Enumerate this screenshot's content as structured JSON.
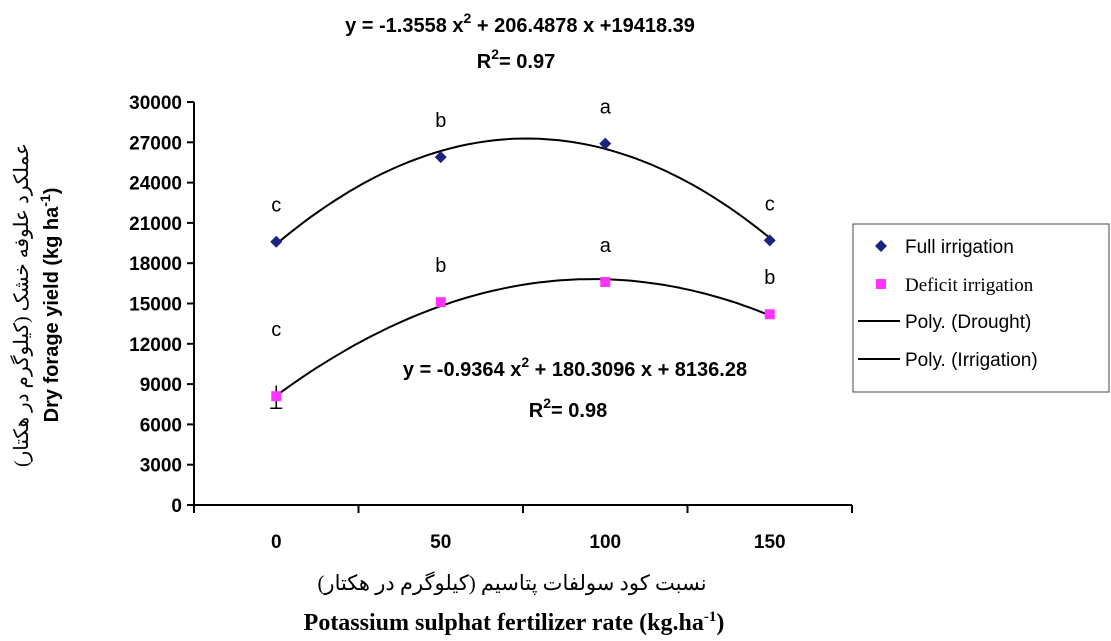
{
  "chart_data": {
    "type": "scatter",
    "x": [
      0,
      50,
      100,
      150
    ],
    "x_ticks": [
      0,
      50,
      100,
      150
    ],
    "xlim": [
      -25,
      175
    ],
    "ylim": [
      0,
      30000
    ],
    "y_ticks": [
      0,
      3000,
      6000,
      9000,
      12000,
      15000,
      18000,
      21000,
      24000,
      27000,
      30000
    ],
    "ylabel_fa": "عملکرد علوفه خشک (کیلوگرم در هکتار)",
    "ylabel_en": "Dry forage yield (kg ha",
    "ylabel_sup": "-1",
    "ylabel_end": ")",
    "xlabel_fa": "نسبت کود سولفات پتاسیم (کیلوگرم در هکتار)",
    "xlabel_en": "Potassium sulphat fertilizer rate (kg.ha",
    "xlabel_sup": "-1",
    "xlabel_end": ")",
    "series": [
      {
        "name": "Full irrigation",
        "marker": "diamond",
        "color": "#1a237e",
        "values": [
          19600,
          25900,
          26900,
          19700
        ],
        "letters": [
          "c",
          "b",
          "a",
          "c"
        ],
        "trend": {
          "a": -1.3558,
          "b": 206.4878,
          "c": 19418.39,
          "name": "Poly. (Drought)"
        },
        "equation_parts": [
          "y = -1.3558 x",
          "2",
          " + 206.4878 x +19418.39"
        ],
        "r2": "= 0.97"
      },
      {
        "name": "Deficit irrigation",
        "marker": "square",
        "color": "#ff33ff",
        "values": [
          8100,
          15100,
          16600,
          14200
        ],
        "letters": [
          "c",
          "b",
          "a",
          "b"
        ],
        "trend": {
          "a": -0.9364,
          "b": 180.3096,
          "c": 8136.28,
          "name": "Poly. (Irrigation)"
        },
        "equation_parts": [
          "y = -0.9364 x",
          "2",
          " + 180.3096 x + 8136.28"
        ],
        "r2": "= 0.98",
        "error_low_at_0": 7200,
        "error_high_at_0": 8900
      }
    ],
    "legend_position": "right",
    "grid": false
  }
}
